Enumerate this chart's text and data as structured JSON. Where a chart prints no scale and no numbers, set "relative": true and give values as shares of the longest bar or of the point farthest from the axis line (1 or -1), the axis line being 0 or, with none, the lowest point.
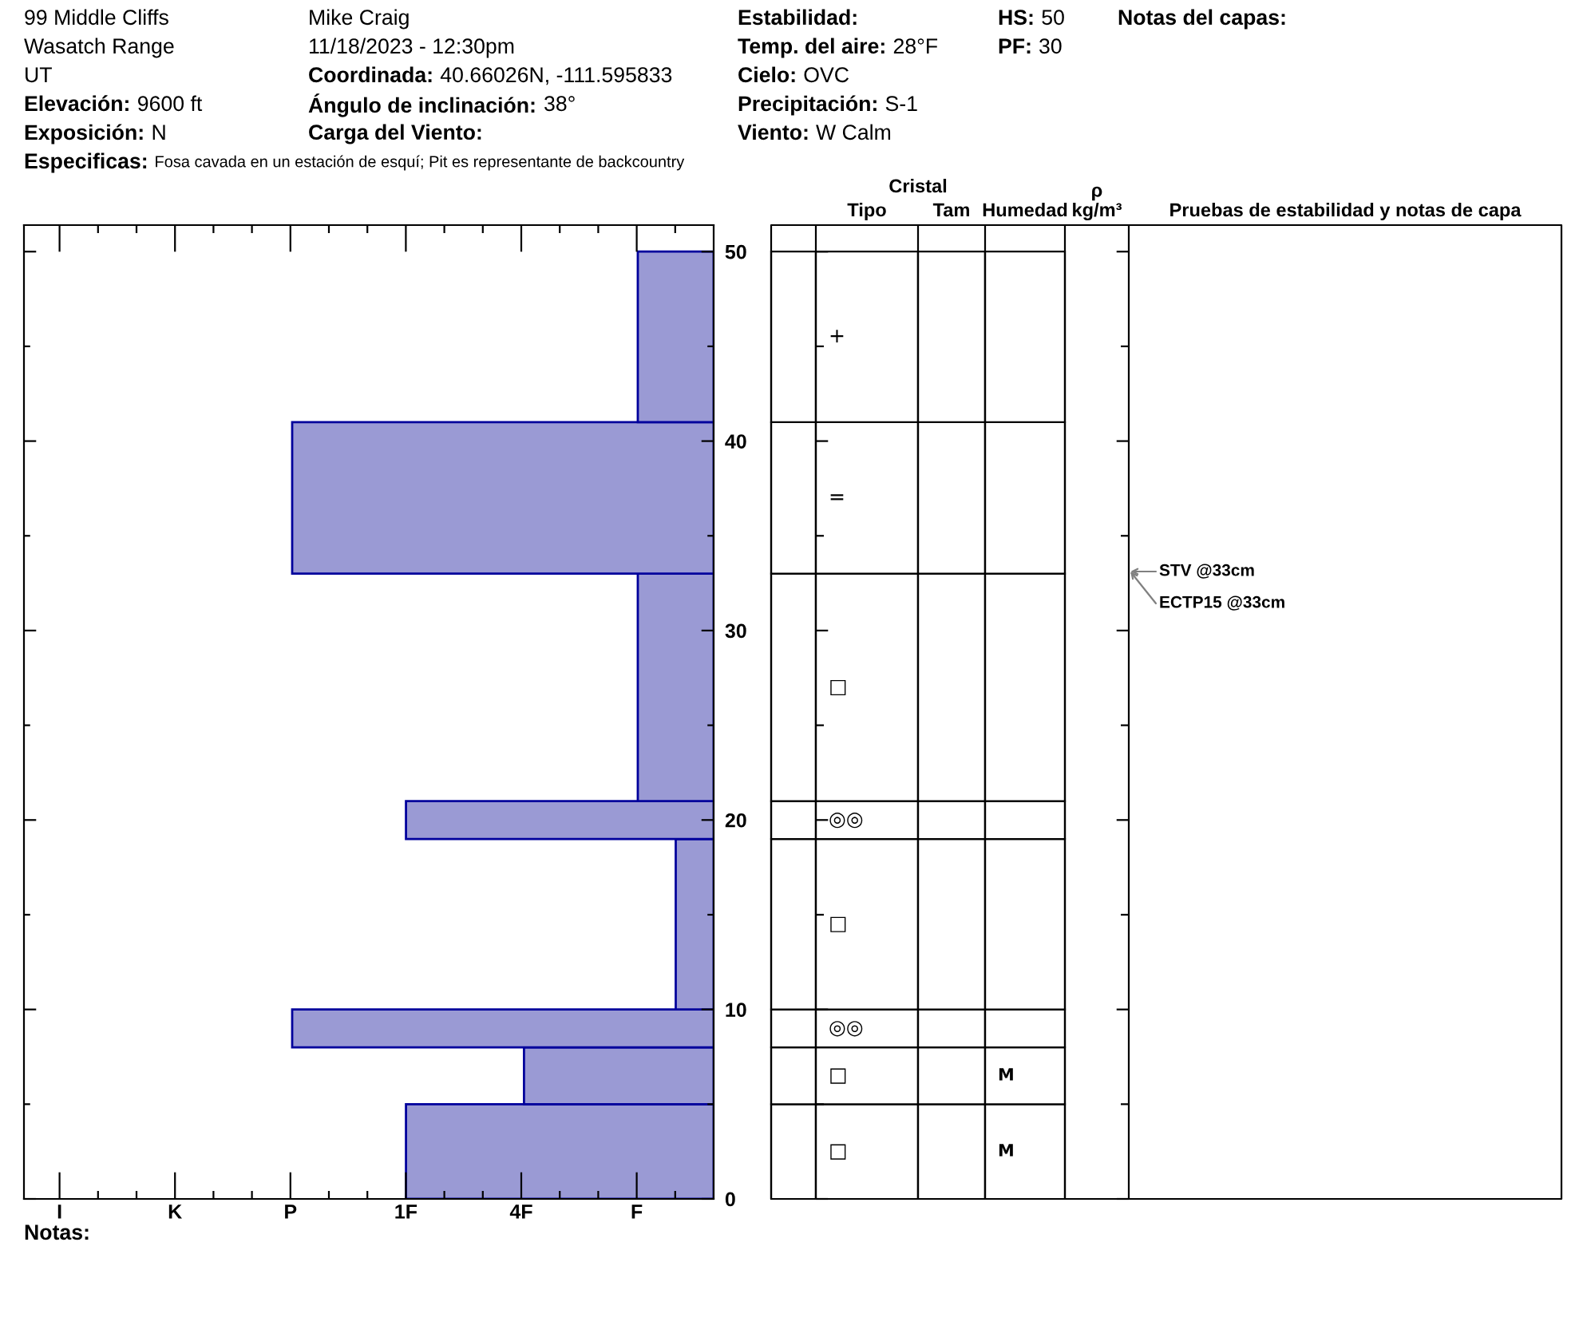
{
  "chart_data": [
    {
      "type": "bar",
      "orientation": "horizontal",
      "relative": true,
      "x": [
        2.5,
        6.5,
        9,
        14.5,
        20,
        27,
        37,
        45.5
      ],
      "values": [
        0.73,
        0.45,
        1,
        0.09,
        0.73,
        0.18,
        1,
        0.18
      ],
      "color": "#9a9ad4",
      "ylim": [
        0,
        51.4
      ],
      "yticks": [
        0,
        {
          "value": 5,
          "label": null
        },
        10,
        {
          "value": 15,
          "label": null
        },
        20,
        {
          "value": 25,
          "label": null
        },
        30,
        {
          "value": 35,
          "label": null
        },
        40,
        {
          "value": 45,
          "label": null
        },
        50
      ],
      "annotations": [
        "99 Middle Cliffs",
        "Wasatch Range",
        "UT",
        "Elevación:",
        "9600 ft",
        "Exposición:",
        "N",
        "Mike Craig",
        "11/18/2023 - 12:30pm",
        "Coordinada:",
        "40.66026N, -111.595833",
        "Ángulo de inclinación:",
        "38°",
        "Carga del Viento:",
        "Estabilidad:",
        "Temp. del aire:",
        "28°F",
        "Cielo:",
        "OVC",
        "Precipitación:",
        "S-1",
        "Viento:",
        "W Calm",
        "HS:",
        "50",
        "PF:",
        "30",
        "Notas del capas:",
        "Especificas:",
        "Fosa cavada en un estación de esquí; Pit es representante de backcountry",
        "I",
        "K",
        "P",
        "1F",
        "4F",
        "F",
        "Notas:"
      ]
    },
    {
      "type": "bar",
      "stacked": true,
      "categories": [
        null,
        "Tipo",
        "Tam",
        "Humedad",
        "ρ\nkg/m³"
      ],
      "series": [
        {
          "color": "#ffffff",
          "values": [
            5,
            5,
            5,
            5,
            null
          ],
          "value_labels": [
            null,
            "□",
            null,
            "M",
            null
          ]
        },
        {
          "color": "#ffffff",
          "values": [
            3,
            3,
            3,
            3,
            null
          ],
          "value_labels": [
            null,
            "□",
            null,
            "M",
            null
          ]
        },
        {
          "color": "#ffffff",
          "values": [
            2,
            2,
            2,
            2,
            null
          ],
          "value_labels": [
            null,
            "◎◎",
            null,
            null,
            null
          ]
        },
        {
          "color": "#ffffff",
          "values": [
            9,
            9,
            9,
            9,
            null
          ],
          "value_labels": [
            null,
            "□",
            null,
            null,
            null
          ]
        },
        {
          "color": "#ffffff",
          "values": [
            2,
            2,
            2,
            2,
            null
          ],
          "value_labels": [
            null,
            "◎◎",
            null,
            null,
            null
          ]
        },
        {
          "color": "#ffffff",
          "values": [
            12,
            12,
            12,
            12,
            null
          ],
          "value_labels": [
            null,
            "□",
            null,
            null,
            null
          ]
        },
        {
          "color": "#ffffff",
          "values": [
            8,
            8,
            8,
            8,
            null
          ],
          "value_labels": [
            null,
            "=",
            null,
            null,
            null
          ]
        },
        {
          "color": "#ffffff",
          "values": [
            9,
            9,
            9,
            9,
            null
          ],
          "value_labels": [
            null,
            "+",
            null,
            null,
            null
          ]
        }
      ],
      "ylim": [
        0,
        51.4
      ],
      "yticks": [
        0,
        {
          "value": 5,
          "label": null
        },
        10,
        {
          "value": 15,
          "label": null
        },
        20,
        {
          "value": 25,
          "label": null
        },
        30,
        {
          "value": 35,
          "label": null
        },
        40,
        {
          "value": 45,
          "label": null
        },
        50
      ],
      "tick_labels": "x",
      "annotations": [
        "Cristal",
        "Pruebas de estabilidad y notas de capa",
        "STV @33cm",
        "ECTP15 @33cm"
      ]
    }
  ]
}
